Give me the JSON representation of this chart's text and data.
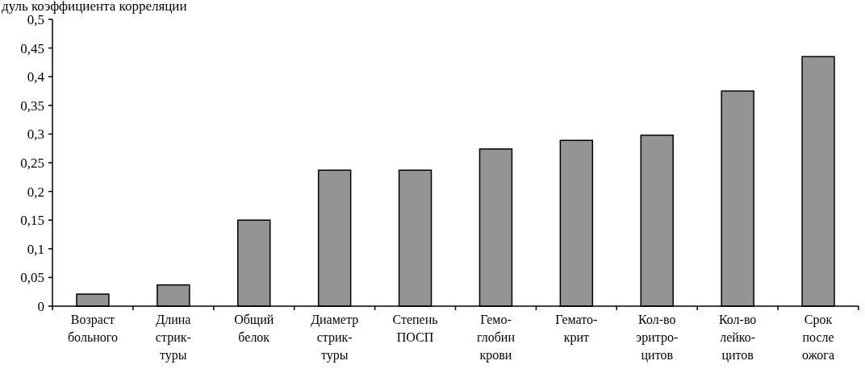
{
  "chart_data": {
    "type": "bar",
    "ylabel": "дуль коэффициента корреляции",
    "categories": [
      "Возраст\nбольного",
      "Длина\nстрик-\nтуры",
      "Общий\nбелок",
      "Диаметр\nстрик-\nтуры",
      "Степень\nПОСП",
      "Гемо-\nглобин\nкрови",
      "Гемато-\nкрит",
      "Кол-во\nэритро-\nцитов",
      "Кол-во\nлейко-\nцитов",
      "Срок\nпосле\nожога"
    ],
    "values": [
      0.021,
      0.037,
      0.15,
      0.237,
      0.237,
      0.274,
      0.289,
      0.298,
      0.375,
      0.435
    ],
    "color": "#939495",
    "ylim": [
      0,
      0.5
    ],
    "yticks": [
      {
        "value": 0,
        "label": "0"
      },
      {
        "value": 0.05,
        "label": "0,05"
      },
      {
        "value": 0.1,
        "label": "0,1"
      },
      {
        "value": 0.15,
        "label": "0,15"
      },
      {
        "value": 0.2,
        "label": "0,2"
      },
      {
        "value": 0.25,
        "label": "0,25"
      },
      {
        "value": 0.3,
        "label": "0,3"
      },
      {
        "value": 0.35,
        "label": "0,35"
      },
      {
        "value": 0.4,
        "label": "0,4"
      },
      {
        "value": 0.45,
        "label": "0,45"
      },
      {
        "value": 0.5,
        "label": "0,5"
      }
    ]
  }
}
